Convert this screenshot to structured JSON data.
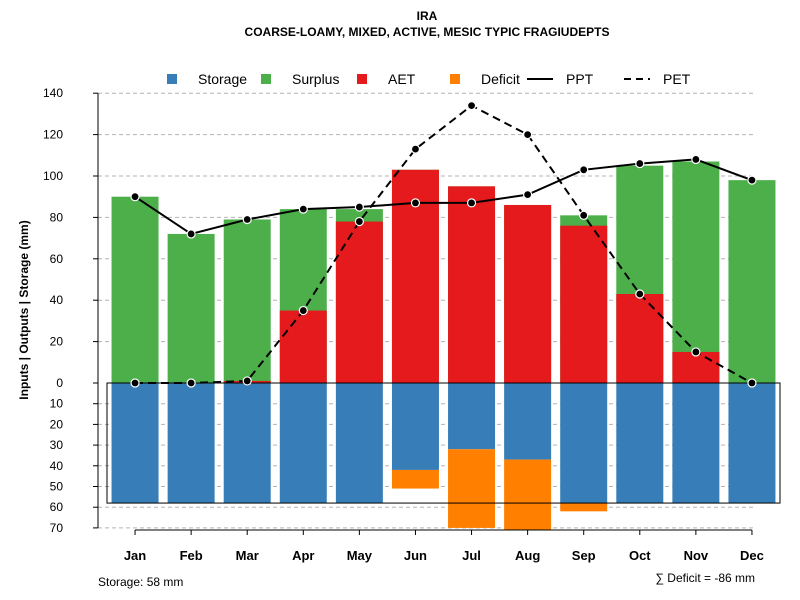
{
  "chart_data": {
    "type": "bar",
    "title": "IRA",
    "subtitle": "COARSE-LOAMY, MIXED, ACTIVE, MESIC TYPIC FRAGIUDEPTS",
    "ylabel": "Inputs | Outputs | Storage    (mm)",
    "ylim": [
      -70,
      140
    ],
    "upper_ticks": [
      "0",
      "20",
      "40",
      "60",
      "80",
      "100",
      "120",
      "140"
    ],
    "lower_ticks": [
      "10",
      "20",
      "30",
      "40",
      "50",
      "60",
      "70"
    ],
    "categories": [
      "Jan",
      "Feb",
      "Mar",
      "Apr",
      "May",
      "Jun",
      "Jul",
      "Aug",
      "Sep",
      "Oct",
      "Nov",
      "Dec"
    ],
    "series": [
      {
        "name": "Storage",
        "color": "#377EB8",
        "values": [
          58,
          58,
          58,
          58,
          58,
          42,
          32,
          37,
          58,
          58,
          58,
          58
        ]
      },
      {
        "name": "Surplus",
        "color": "#4DAF4A",
        "values": [
          90,
          72,
          78,
          49,
          6,
          0,
          0,
          0,
          5,
          62,
          92,
          98
        ]
      },
      {
        "name": "AET",
        "color": "#E41A1C",
        "values": [
          0,
          0,
          1,
          35,
          78,
          103,
          95,
          86,
          76,
          43,
          15,
          0
        ]
      },
      {
        "name": "Deficit",
        "color": "#FF7F00",
        "values": [
          0,
          0,
          0,
          0,
          0,
          9,
          38,
          34,
          4,
          0,
          0,
          0
        ]
      },
      {
        "name": "PPT",
        "color": "#000000",
        "values": [
          90,
          72,
          79,
          84,
          85,
          87,
          87,
          91,
          103,
          106,
          108,
          98
        ]
      },
      {
        "name": "PET",
        "color": "#000000",
        "values": [
          0,
          0,
          1,
          35,
          78,
          113,
          134,
          120,
          81,
          43,
          15,
          0
        ]
      }
    ],
    "legend": {
      "position": "top",
      "items": [
        {
          "label": "Storage",
          "kind": "box",
          "color": "#377EB8"
        },
        {
          "label": "Surplus",
          "kind": "box",
          "color": "#4DAF4A"
        },
        {
          "label": "AET",
          "kind": "box",
          "color": "#E41A1C"
        },
        {
          "label": "Deficit",
          "kind": "box",
          "color": "#FF7F00"
        },
        {
          "label": "PPT",
          "kind": "solid-line",
          "color": "#000000"
        },
        {
          "label": "PET",
          "kind": "dashed-line",
          "color": "#000000"
        }
      ]
    },
    "storage_capacity": 58,
    "storage_note": "Storage: 58 mm",
    "deficit_note": "∑ Deficit = -86 mm",
    "grid": true
  }
}
